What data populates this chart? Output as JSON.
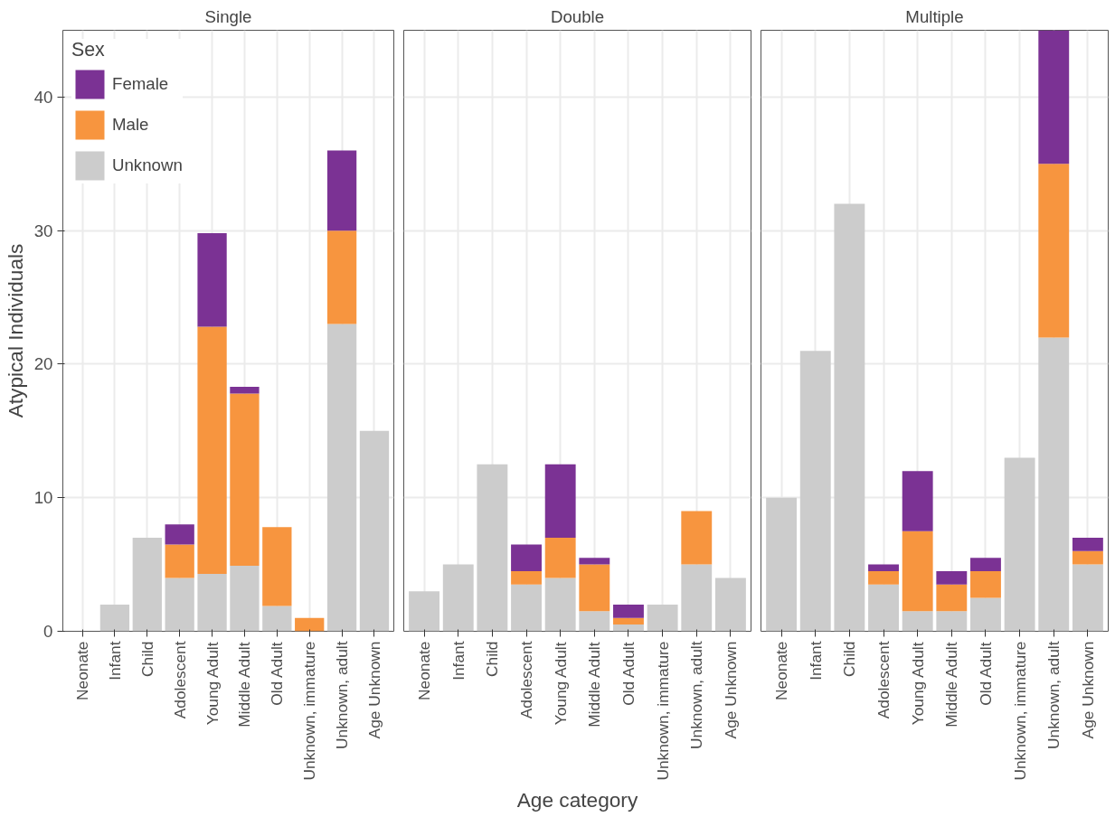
{
  "chart_data": [
    {
      "type": "bar",
      "title": "Single",
      "ylabel": "Atypical Individuals",
      "stacked": true,
      "legend": "top left",
      "legend_title": "Sex",
      "grid": true,
      "ylim": [
        0,
        45
      ],
      "yticks": [
        0,
        10,
        20,
        30,
        40
      ],
      "categories": [
        "Neonate",
        "Infant",
        "Child",
        "Adolescent",
        "Young Adult",
        "Middle Adult",
        "Old Adult",
        "Unknown, immature",
        "Unknown, adult",
        "Age Unknown"
      ],
      "series": [
        {
          "name": "Unknown",
          "color": "#cccccc",
          "values": [
            null,
            2,
            7,
            4,
            4.3,
            4.9,
            1.9,
            null,
            23,
            15
          ]
        },
        {
          "name": "Male",
          "color": "#f7953f",
          "values": [
            null,
            null,
            null,
            2.5,
            18.5,
            12.9,
            5.9,
            1,
            7,
            null
          ]
        },
        {
          "name": "Female",
          "color": "#7b3294",
          "values": [
            null,
            null,
            null,
            1.5,
            7,
            0.5,
            null,
            null,
            6,
            null
          ]
        }
      ]
    },
    {
      "type": "bar",
      "title": "Double",
      "xlabel": "Age category",
      "stacked": true,
      "grid": true,
      "tick_labels": "x",
      "ylim": [
        0,
        45
      ],
      "yticks": [
        0,
        10,
        20,
        30,
        40
      ],
      "categories": [
        "Neonate",
        "Infant",
        "Child",
        "Adolescent",
        "Young Adult",
        "Middle Adult",
        "Old Adult",
        "Unknown, immature",
        "Unknown, adult",
        "Age Unknown"
      ],
      "series": [
        {
          "color": "#cccccc",
          "values": [
            3,
            5,
            12.5,
            3.5,
            4,
            1.5,
            0.5,
            2,
            5,
            4
          ]
        },
        {
          "color": "#f7953f",
          "values": [
            null,
            null,
            null,
            1,
            3,
            3.5,
            0.5,
            null,
            4,
            null
          ]
        },
        {
          "color": "#7b3294",
          "values": [
            null,
            null,
            null,
            2,
            5.5,
            0.5,
            1,
            null,
            null,
            null
          ]
        }
      ]
    },
    {
      "type": "bar",
      "title": "Multiple",
      "stacked": true,
      "grid": true,
      "tick_labels": "x",
      "ylim": [
        0,
        45
      ],
      "yticks": [
        0,
        10,
        20,
        30,
        40
      ],
      "categories": [
        "Neonate",
        "Infant",
        "Child",
        "Adolescent",
        "Young Adult",
        "Middle Adult",
        "Old Adult",
        "Unknown, immature",
        "Unknown, adult",
        "Age Unknown"
      ],
      "series": [
        {
          "color": "#cccccc",
          "values": [
            10,
            21,
            32,
            3.5,
            1.5,
            1.5,
            2.5,
            13,
            22,
            5
          ]
        },
        {
          "color": "#f7953f",
          "values": [
            null,
            null,
            null,
            1,
            6,
            2,
            2,
            null,
            13,
            1
          ]
        },
        {
          "color": "#7b3294",
          "values": [
            null,
            null,
            null,
            0.5,
            4.5,
            1,
            1,
            null,
            10,
            1
          ]
        }
      ]
    }
  ]
}
